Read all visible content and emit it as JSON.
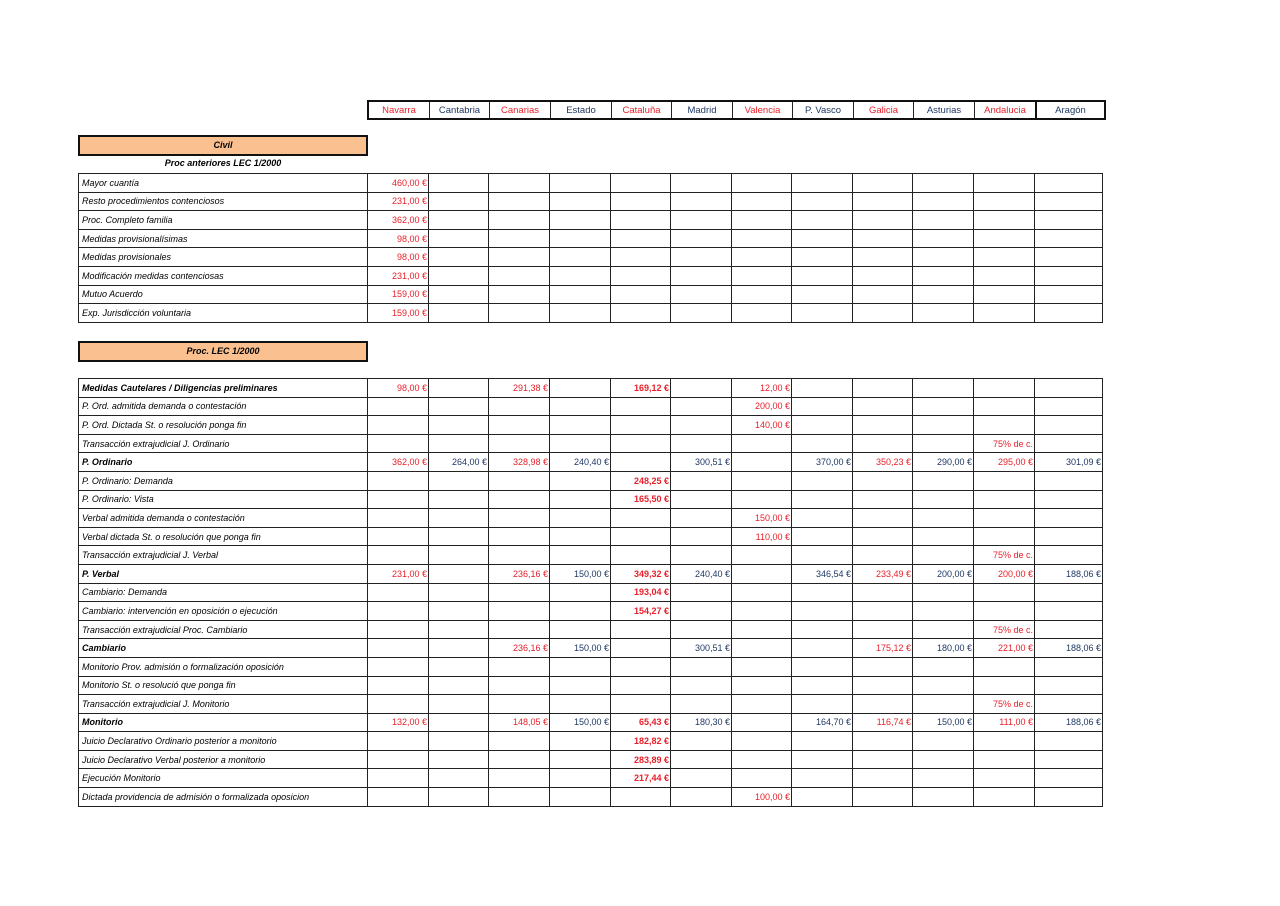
{
  "colors": {
    "red": "#e8202a",
    "navy": "#1f3864",
    "band": "#fac08f"
  },
  "regions": [
    {
      "name": "Navarra",
      "color": "red"
    },
    {
      "name": "Cantabria",
      "color": "navy"
    },
    {
      "name": "Canarias",
      "color": "red"
    },
    {
      "name": "Estado",
      "color": "navy"
    },
    {
      "name": "Cataluña",
      "color": "red"
    },
    {
      "name": "Madrid",
      "color": "navy"
    },
    {
      "name": "Valencia",
      "color": "red"
    },
    {
      "name": "P. Vasco",
      "color": "navy"
    },
    {
      "name": "Galicia",
      "color": "red"
    },
    {
      "name": "Asturias",
      "color": "navy"
    },
    {
      "name": "Andalucia",
      "color": "red"
    },
    {
      "name": "Aragón",
      "color": "navy"
    }
  ],
  "section1": {
    "band": "Civil",
    "subtitle": "Proc anteriores LEC 1/2000",
    "rows": [
      {
        "label": "Mayor cuantía",
        "bold": false,
        "values": [
          "460,00 €",
          "",
          "",
          "",
          "",
          "",
          "",
          "",
          "",
          "",
          "",
          ""
        ]
      },
      {
        "label": "Resto procedimientos contenciosos",
        "bold": false,
        "values": [
          "231,00 €",
          "",
          "",
          "",
          "",
          "",
          "",
          "",
          "",
          "",
          "",
          ""
        ]
      },
      {
        "label": "Proc. Completo familia",
        "bold": false,
        "values": [
          "362,00 €",
          "",
          "",
          "",
          "",
          "",
          "",
          "",
          "",
          "",
          "",
          ""
        ]
      },
      {
        "label": "Medidas provisionalísimas",
        "bold": false,
        "values": [
          "98,00 €",
          "",
          "",
          "",
          "",
          "",
          "",
          "",
          "",
          "",
          "",
          ""
        ]
      },
      {
        "label": "Medidas provisionales",
        "bold": false,
        "values": [
          "98,00 €",
          "",
          "",
          "",
          "",
          "",
          "",
          "",
          "",
          "",
          "",
          ""
        ]
      },
      {
        "label": "Modificación medidas contenciosas",
        "bold": false,
        "values": [
          "231,00 €",
          "",
          "",
          "",
          "",
          "",
          "",
          "",
          "",
          "",
          "",
          ""
        ]
      },
      {
        "label": "Mutuo Acuerdo",
        "bold": false,
        "values": [
          "159,00 €",
          "",
          "",
          "",
          "",
          "",
          "",
          "",
          "",
          "",
          "",
          ""
        ]
      },
      {
        "label": "Exp. Jurisdicción voluntaria",
        "bold": false,
        "values": [
          "159,00 €",
          "",
          "",
          "",
          "",
          "",
          "",
          "",
          "",
          "",
          "",
          ""
        ]
      }
    ]
  },
  "section2": {
    "band": "Proc. LEC 1/2000",
    "rows": [
      {
        "label": "Medidas Cautelares / Diligencias preliminares",
        "bold": true,
        "values": [
          "98,00 €",
          "",
          "291,38 €",
          "",
          "169,12 €",
          "",
          "12,00 €",
          "",
          "",
          "",
          "",
          ""
        ]
      },
      {
        "label": "P. Ord. admitida demanda o contestación",
        "bold": false,
        "values": [
          "",
          "",
          "",
          "",
          "",
          "",
          "200,00 €",
          "",
          "",
          "",
          "",
          ""
        ]
      },
      {
        "label": "P. Ord. Dictada St. o resolución ponga fin",
        "bold": false,
        "values": [
          "",
          "",
          "",
          "",
          "",
          "",
          "140,00 €",
          "",
          "",
          "",
          "",
          ""
        ]
      },
      {
        "label": "Transacción extrajudicial J. Ordinario",
        "bold": false,
        "values": [
          "",
          "",
          "",
          "",
          "",
          "",
          "",
          "",
          "",
          "",
          "75% de c.",
          ""
        ]
      },
      {
        "label": "P. Ordinario",
        "bold": true,
        "values": [
          "362,00 €",
          "264,00 €",
          "328,98 €",
          "240,40 €",
          "",
          "300,51 €",
          "",
          "370,00 €",
          "350,23 €",
          "290,00 €",
          "295,00 €",
          "301,09 €"
        ]
      },
      {
        "label": "P. Ordinario: Demanda",
        "bold": false,
        "values": [
          "",
          "",
          "",
          "",
          "248,25 €",
          "",
          "",
          "",
          "",
          "",
          "",
          ""
        ]
      },
      {
        "label": "P. Ordinario: Vista",
        "bold": false,
        "values": [
          "",
          "",
          "",
          "",
          "165,50 €",
          "",
          "",
          "",
          "",
          "",
          "",
          ""
        ]
      },
      {
        "label": "Verbal admitida demanda o contestación",
        "bold": false,
        "values": [
          "",
          "",
          "",
          "",
          "",
          "",
          "150,00 €",
          "",
          "",
          "",
          "",
          ""
        ]
      },
      {
        "label": "Verbal dictada St. o resolución que ponga fin",
        "bold": false,
        "values": [
          "",
          "",
          "",
          "",
          "",
          "",
          "110,00 €",
          "",
          "",
          "",
          "",
          ""
        ]
      },
      {
        "label": "Transacción extrajudicial J. Verbal",
        "bold": false,
        "values": [
          "",
          "",
          "",
          "",
          "",
          "",
          "",
          "",
          "",
          "",
          "75% de c.",
          ""
        ]
      },
      {
        "label": "P. Verbal",
        "bold": true,
        "values": [
          "231,00 €",
          "",
          "236,16 €",
          "150,00 €",
          "349,32 €",
          "240,40 €",
          "",
          "346,54 €",
          "233,49 €",
          "200,00 €",
          "200,00 €",
          "188,06 €"
        ]
      },
      {
        "label": "Cambiario: Demanda",
        "bold": false,
        "values": [
          "",
          "",
          "",
          "",
          "193,04 €",
          "",
          "",
          "",
          "",
          "",
          "",
          ""
        ]
      },
      {
        "label": "Cambiario: intervención en oposición o ejecución",
        "bold": false,
        "values": [
          "",
          "",
          "",
          "",
          "154,27 €",
          "",
          "",
          "",
          "",
          "",
          "",
          ""
        ]
      },
      {
        "label": "Transacción extrajudicial Proc. Cambiario",
        "bold": false,
        "values": [
          "",
          "",
          "",
          "",
          "",
          "",
          "",
          "",
          "",
          "",
          "75% de c.",
          ""
        ]
      },
      {
        "label": "Cambiario",
        "bold": true,
        "values": [
          "",
          "",
          "236,16 €",
          "150,00 €",
          "",
          "300,51 €",
          "",
          "",
          "175,12 €",
          "180,00 €",
          "221,00 €",
          "188,06 €"
        ]
      },
      {
        "label": "Monitorio Prov. admisión o formalización oposición",
        "bold": false,
        "values": [
          "",
          "",
          "",
          "",
          "",
          "",
          "",
          "",
          "",
          "",
          "",
          ""
        ]
      },
      {
        "label": "Monitorio St. o resolució que ponga fin",
        "bold": false,
        "values": [
          "",
          "",
          "",
          "",
          "",
          "",
          "",
          "",
          "",
          "",
          "",
          ""
        ]
      },
      {
        "label": "Transacción extrajudicial J. Monitorio",
        "bold": false,
        "values": [
          "",
          "",
          "",
          "",
          "",
          "",
          "",
          "",
          "",
          "",
          "75% de c.",
          ""
        ]
      },
      {
        "label": "Monitorio",
        "bold": true,
        "values": [
          "132,00 €",
          "",
          "148,05 €",
          "150,00 €",
          "65,43 €",
          "180,30 €",
          "",
          "164,70 €",
          "116,74 €",
          "150,00 €",
          "111,00 €",
          "188,06 €"
        ]
      },
      {
        "label": "Juicio Declarativo Ordinario posterior a monitorio",
        "bold": false,
        "values": [
          "",
          "",
          "",
          "",
          "182,82 €",
          "",
          "",
          "",
          "",
          "",
          "",
          ""
        ]
      },
      {
        "label": "Juicio Declarativo Verbal posterior a monitorio",
        "bold": false,
        "values": [
          "",
          "",
          "",
          "",
          "283,89 €",
          "",
          "",
          "",
          "",
          "",
          "",
          ""
        ]
      },
      {
        "label": "Ejecución Monitorio",
        "bold": false,
        "values": [
          "",
          "",
          "",
          "",
          "217,44 €",
          "",
          "",
          "",
          "",
          "",
          "",
          ""
        ]
      },
      {
        "label": "Dictada providencia de admisión o formalizada oposicion",
        "bold": false,
        "values": [
          "",
          "",
          "",
          "",
          "",
          "",
          "100,00 €",
          "",
          "",
          "",
          "",
          ""
        ]
      }
    ]
  }
}
